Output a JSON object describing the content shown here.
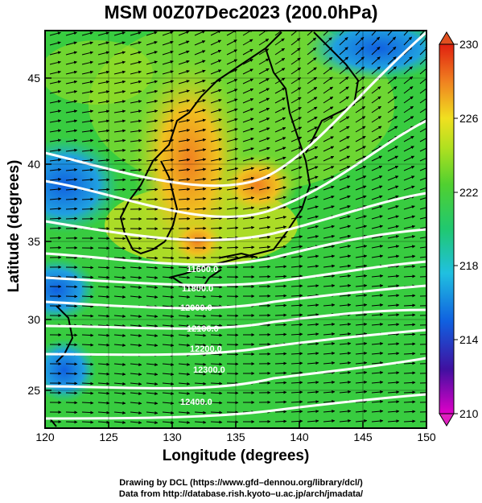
{
  "title": "MSM 00Z07Dec2023 (200.0hPa)",
  "xlabel": "Longitude (degrees)",
  "ylabel": "Latitude  (degrees)",
  "credits": [
    "Drawing by DCL (https://www.gfd–dennou.org/library/dcl/)",
    "Data from http://database.rish.kyoto–u.ac.jp/arch/jmadata/"
  ],
  "map": {
    "lon_range": [
      120,
      150
    ],
    "lat_range": [
      22.5,
      48
    ],
    "lon_ticks": [
      "120",
      "125",
      "130",
      "135",
      "140",
      "145",
      "150"
    ],
    "lat_ticks": [
      "25",
      "30",
      "35",
      "40",
      "45"
    ],
    "field": "temperature",
    "contour_labels": [
      "11600.0",
      "11800.0",
      "12000.0",
      "12100.0",
      "12200.0",
      "12300.0",
      "12400.0"
    ],
    "colors": {
      "wind_vectors": "#000000",
      "contours": "#ffffff",
      "coastline": "#000000"
    }
  },
  "colorbar": {
    "min": 210,
    "max": 230,
    "tick_labels": [
      "230",
      "226",
      "222",
      "218",
      "214",
      "210"
    ],
    "colors": [
      "#e000c8",
      "#2030c0",
      "#1060e0",
      "#20c0e0",
      "#20c870",
      "#40d040",
      "#a8e020",
      "#f0e020",
      "#f08020",
      "#e02010"
    ]
  }
}
